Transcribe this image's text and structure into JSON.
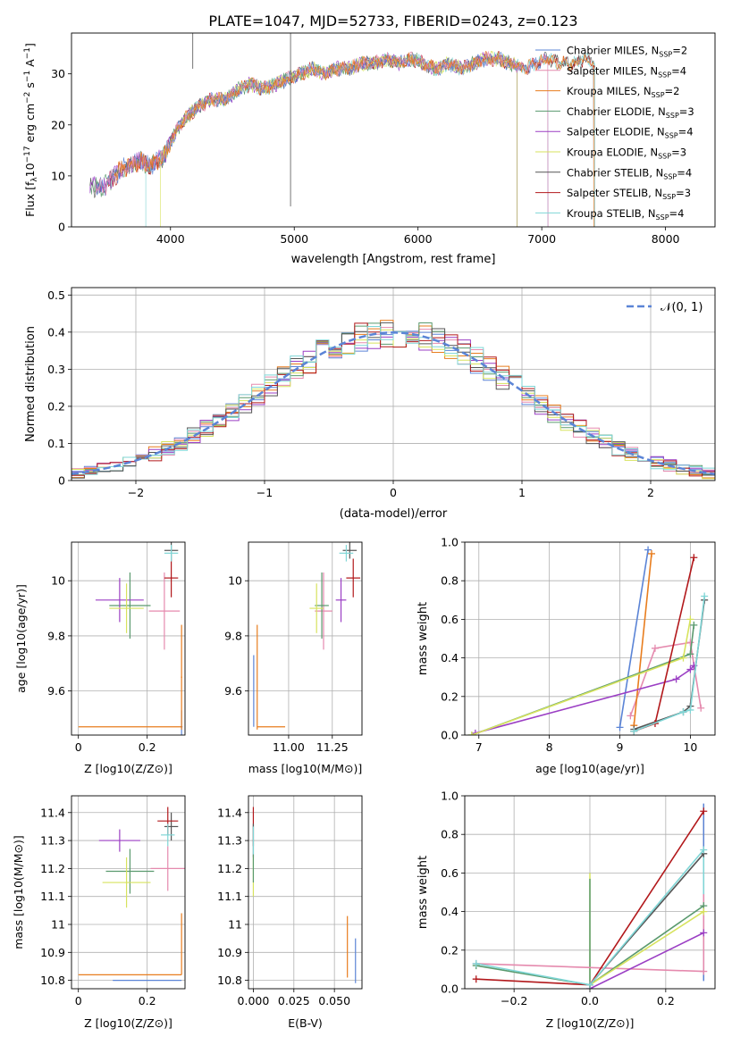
{
  "figure_title": "PLATE=1047, MJD=52733, FIBERID=0243, z=0.123",
  "colors": {
    "Chabrier MILES": "#5b84d6",
    "Salpeter MILES": "#e58aae",
    "Kroupa MILES": "#e87d1e",
    "Chabrier ELODIE": "#5a9a6e",
    "Salpeter ELODIE": "#9b3fc4",
    "Kroupa ELODIE": "#d7e35e",
    "Chabrier STELIB": "#555555",
    "Salpeter STELIB": "#b2181b",
    "Kroupa STELIB": "#7fd6d6"
  },
  "chart_data": [
    {
      "id": "spectrum",
      "type": "line",
      "title": "PLATE=1047, MJD=52733, FIBERID=0243, z=0.123",
      "xlabel": "wavelength [Angstrom, rest frame]",
      "ylabel": "Flux [f_λ 10^-17 erg cm^-2 s^-1 A^-1]",
      "xlim": [
        3200,
        8400
      ],
      "ylim": [
        0,
        38
      ],
      "xticks": [
        4000,
        5000,
        6000,
        7000,
        8000
      ],
      "yticks": [
        0,
        10,
        20,
        30
      ],
      "legend_position": "top-right",
      "legend": [
        "Chabrier MILES, N_SSP=2",
        "Salpeter MILES, N_SSP=4",
        "Kroupa MILES, N_SSP=2",
        "Chabrier ELODIE, N_SSP=3",
        "Salpeter ELODIE, N_SSP=4",
        "Kroupa ELODIE, N_SSP=3",
        "Chabrier STELIB, N_SSP=4",
        "Salpeter STELIB, N_SSP=3",
        "Kroupa STELIB, N_SSP=4"
      ],
      "envelope": {
        "x": [
          3350,
          3450,
          3550,
          3650,
          3750,
          3850,
          3950,
          4050,
          4150,
          4250,
          4350,
          4450,
          4550,
          4650,
          4750,
          4850,
          4950,
          5050,
          5150,
          5250,
          5350,
          5450,
          5550,
          5650,
          5750,
          5850,
          5950,
          6050,
          6150,
          6250,
          6350,
          6450,
          6550,
          6650,
          6750,
          6850,
          6950,
          7050,
          7150,
          7250,
          7350,
          7430
        ],
        "y": [
          8,
          7.5,
          10,
          12,
          13,
          12,
          14,
          19,
          22,
          24,
          25,
          25,
          27,
          28,
          27,
          28,
          29,
          30,
          31,
          30,
          31,
          31,
          32,
          32,
          33,
          32,
          33,
          32,
          31,
          32,
          31,
          32,
          33,
          33,
          32,
          31,
          32,
          33,
          32,
          32,
          33,
          32
        ]
      },
      "model_ranges": [
        {
          "model": "Chabrier MILES",
          "x": [
            3400,
            7050
          ]
        },
        {
          "model": "Salpeter MILES",
          "x": [
            3400,
            7050
          ]
        },
        {
          "model": "Kroupa MILES",
          "x": [
            3550,
            7420
          ]
        },
        {
          "model": "Chabrier ELODIE",
          "x": [
            3350,
            6800
          ]
        },
        {
          "model": "Salpeter ELODIE",
          "x": [
            3350,
            6800
          ]
        },
        {
          "model": "Kroupa ELODIE",
          "x": [
            3920,
            6800
          ]
        },
        {
          "model": "Chabrier STELIB",
          "x": [
            3350,
            7420
          ]
        },
        {
          "model": "Salpeter STELIB",
          "x": [
            3500,
            7430
          ]
        },
        {
          "model": "Kroupa STELIB",
          "x": [
            3800,
            7430
          ]
        }
      ],
      "spikes": [
        {
          "x": 4180,
          "y": [
            31,
            38
          ]
        },
        {
          "x": 4970,
          "y": [
            4,
            38
          ]
        }
      ]
    },
    {
      "id": "residuals",
      "type": "line",
      "xlabel": "(data-model)/error",
      "ylabel": "Normed distribution",
      "xlim": [
        -2.5,
        2.5
      ],
      "ylim": [
        0,
        0.52
      ],
      "xticks": [
        -2,
        -1,
        0,
        1,
        2
      ],
      "yticks": [
        0.0,
        0.1,
        0.2,
        0.3,
        0.4,
        0.5
      ],
      "grid": true,
      "legend_position": "top-right",
      "legend_label": "N(0,1)",
      "gaussian": {
        "mean": 0,
        "sigma": 1,
        "style": "dashed"
      },
      "hist_bins": {
        "start": -2.5,
        "width": 0.1,
        "count": 50
      }
    },
    {
      "id": "z-age",
      "type": "scatter",
      "xlabel": "Z [log10(Z/Z⊙)]",
      "ylabel": "age [log10(age/yr)]",
      "xlim": [
        -0.02,
        0.31
      ],
      "ylim": [
        9.44,
        10.14
      ],
      "xticks": [
        0.0,
        0.2
      ],
      "yticks": [
        9.6,
        9.8,
        10.0
      ],
      "grid": true,
      "points": [
        {
          "model": "Chabrier MILES",
          "x": 0.3,
          "y": 9.47,
          "xerr": 0.003,
          "yerr": 0.06
        },
        {
          "model": "Salpeter MILES",
          "x": 0.25,
          "y": 9.89,
          "xerr": 0.045,
          "yerr": 0.14
        },
        {
          "model": "Kroupa MILES",
          "x": 0.15,
          "y": 9.47,
          "xerr": 0.15,
          "yerr": 0.0
        },
        {
          "model": "Kroupa MILES",
          "x": 0.3,
          "y": 9.65,
          "xerr": 0.002,
          "yerr": 0.19
        },
        {
          "model": "Chabrier ELODIE",
          "x": 0.15,
          "y": 9.91,
          "xerr": 0.06,
          "yerr": 0.12
        },
        {
          "model": "Salpeter ELODIE",
          "x": 0.12,
          "y": 9.93,
          "xerr": 0.07,
          "yerr": 0.08
        },
        {
          "model": "Kroupa ELODIE",
          "x": 0.14,
          "y": 9.9,
          "xerr": 0.05,
          "yerr": 0.09
        },
        {
          "model": "Chabrier STELIB",
          "x": 0.27,
          "y": 10.11,
          "xerr": 0.02,
          "yerr": 0.03
        },
        {
          "model": "Salpeter STELIB",
          "x": 0.27,
          "y": 10.01,
          "xerr": 0.02,
          "yerr": 0.07
        },
        {
          "model": "Kroupa STELIB",
          "x": 0.27,
          "y": 10.1,
          "xerr": 0.02,
          "yerr": 0.03
        }
      ]
    },
    {
      "id": "mass-age",
      "type": "scatter",
      "xlabel": "mass [log10(M/M⊙)]",
      "ylabel": "",
      "xlim": [
        10.77,
        11.42
      ],
      "ylim": [
        9.44,
        10.14
      ],
      "xticks": [
        11.0,
        11.25
      ],
      "tick_labels": [
        "11.00",
        "11.25"
      ],
      "yticks": [
        9.6,
        9.8,
        10.0
      ],
      "grid": true,
      "points": [
        {
          "model": "Chabrier MILES",
          "x": 10.8,
          "y": 9.6,
          "xerr": 0.0,
          "yerr": 0.13
        },
        {
          "model": "Kroupa MILES",
          "x": 10.82,
          "y": 9.65,
          "xerr": 0.0,
          "yerr": 0.19
        },
        {
          "model": "Kroupa MILES",
          "x": 10.9,
          "y": 9.47,
          "xerr": 0.08,
          "yerr": 0.0
        },
        {
          "model": "Salpeter MILES",
          "x": 11.2,
          "y": 9.89,
          "xerr": 0.05,
          "yerr": 0.14
        },
        {
          "model": "Chabrier ELODIE",
          "x": 11.19,
          "y": 9.91,
          "xerr": 0.04,
          "yerr": 0.12
        },
        {
          "model": "Kroupa ELODIE",
          "x": 11.16,
          "y": 9.9,
          "xerr": 0.04,
          "yerr": 0.09
        },
        {
          "model": "Salpeter ELODIE",
          "x": 11.3,
          "y": 9.93,
          "xerr": 0.03,
          "yerr": 0.08
        },
        {
          "model": "Chabrier STELIB",
          "x": 11.35,
          "y": 10.11,
          "xerr": 0.04,
          "yerr": 0.03
        },
        {
          "model": "Salpeter STELIB",
          "x": 11.37,
          "y": 10.01,
          "xerr": 0.04,
          "yerr": 0.07
        },
        {
          "model": "Kroupa STELIB",
          "x": 11.33,
          "y": 10.1,
          "xerr": 0.04,
          "yerr": 0.03
        }
      ]
    },
    {
      "id": "age-weight",
      "type": "line",
      "xlabel": "age [log10(age/yr)]",
      "ylabel": "mass weight",
      "xlim": [
        6.8,
        10.35
      ],
      "ylim": [
        0,
        1.0
      ],
      "xticks": [
        7,
        8,
        9,
        10
      ],
      "yticks": [
        0.0,
        0.2,
        0.4,
        0.6,
        0.8,
        1.0
      ],
      "grid": true,
      "series": [
        {
          "model": "Chabrier MILES",
          "x": [
            9.0,
            9.4
          ],
          "y": [
            0.04,
            0.96
          ]
        },
        {
          "model": "Salpeter MILES",
          "x": [
            9.15,
            9.5,
            10.0,
            10.15
          ],
          "y": [
            0.1,
            0.45,
            0.48,
            0.14
          ]
        },
        {
          "model": "Kroupa MILES",
          "x": [
            9.2,
            9.45
          ],
          "y": [
            0.05,
            0.94
          ]
        },
        {
          "model": "Chabrier ELODIE",
          "x": [
            6.9,
            10.0,
            10.05
          ],
          "y": [
            0.0,
            0.42,
            0.57
          ]
        },
        {
          "model": "Salpeter ELODIE",
          "x": [
            6.95,
            9.8,
            10.0,
            10.05
          ],
          "y": [
            0.01,
            0.29,
            0.34,
            0.36
          ]
        },
        {
          "model": "Kroupa ELODIE",
          "x": [
            6.9,
            9.9,
            10.0
          ],
          "y": [
            0.0,
            0.4,
            0.6
          ]
        },
        {
          "model": "Chabrier STELIB",
          "x": [
            9.2,
            9.9,
            10.0,
            10.2
          ],
          "y": [
            0.03,
            0.12,
            0.15,
            0.7
          ]
        },
        {
          "model": "Salpeter STELIB",
          "x": [
            9.2,
            9.5,
            10.05
          ],
          "y": [
            0.02,
            0.06,
            0.92
          ]
        },
        {
          "model": "Kroupa STELIB",
          "x": [
            9.2,
            9.9,
            10.0,
            10.2
          ],
          "y": [
            0.02,
            0.12,
            0.13,
            0.72
          ]
        }
      ]
    },
    {
      "id": "z-mass",
      "type": "scatter",
      "xlabel": "Z [log10(Z/Z⊙)]",
      "ylabel": "mass [log10(M/M⊙)]",
      "xlim": [
        -0.02,
        0.31
      ],
      "ylim": [
        10.77,
        11.46
      ],
      "xticks": [
        0.0,
        0.2
      ],
      "yticks": [
        10.8,
        10.9,
        11.0,
        11.1,
        11.2,
        11.3,
        11.4
      ],
      "grid": true,
      "points": [
        {
          "model": "Chabrier MILES",
          "x": 0.2,
          "y": 10.8,
          "xerr": 0.1,
          "yerr": 0.0
        },
        {
          "model": "Kroupa MILES",
          "x": 0.15,
          "y": 10.82,
          "xerr": 0.15,
          "yerr": 0.0
        },
        {
          "model": "Kroupa MILES",
          "x": 0.3,
          "y": 10.93,
          "xerr": 0.0,
          "yerr": 0.11
        },
        {
          "model": "Salpeter MILES",
          "x": 0.26,
          "y": 11.2,
          "xerr": 0.05,
          "yerr": 0.08
        },
        {
          "model": "Chabrier ELODIE",
          "x": 0.15,
          "y": 11.19,
          "xerr": 0.07,
          "yerr": 0.08
        },
        {
          "model": "Kroupa ELODIE",
          "x": 0.14,
          "y": 11.15,
          "xerr": 0.07,
          "yerr": 0.09
        },
        {
          "model": "Salpeter ELODIE",
          "x": 0.12,
          "y": 11.3,
          "xerr": 0.06,
          "yerr": 0.04
        },
        {
          "model": "Chabrier STELIB",
          "x": 0.27,
          "y": 11.35,
          "xerr": 0.02,
          "yerr": 0.05
        },
        {
          "model": "Salpeter STELIB",
          "x": 0.26,
          "y": 11.37,
          "xerr": 0.03,
          "yerr": 0.05
        },
        {
          "model": "Kroupa STELIB",
          "x": 0.26,
          "y": 11.32,
          "xerr": 0.02,
          "yerr": 0.04
        }
      ]
    },
    {
      "id": "ebv-mass",
      "type": "scatter",
      "xlabel": "E(B-V)",
      "ylabel": "",
      "xlim": [
        -0.003,
        0.067
      ],
      "ylim": [
        10.77,
        11.46
      ],
      "xticks": [
        0.0,
        0.025,
        0.05
      ],
      "tick_labels": [
        "0.000",
        "0.025",
        "0.050"
      ],
      "yticks": [
        10.8,
        10.9,
        11.0,
        11.1,
        11.2,
        11.3,
        11.4
      ],
      "grid": true,
      "points": [
        {
          "model": "Chabrier MILES",
          "x": 0.063,
          "y": 10.87,
          "xerr": 0.0,
          "yerr": 0.08
        },
        {
          "model": "Kroupa MILES",
          "x": 0.058,
          "y": 10.92,
          "xerr": 0.0,
          "yerr": 0.11
        },
        {
          "model": "Salpeter STELIB",
          "x": 0.0,
          "y": 11.35,
          "xerr": 0.0,
          "yerr": 0.07
        },
        {
          "model": "Chabrier STELIB",
          "x": 0.0,
          "y": 11.3,
          "xerr": 0.0,
          "yerr": 0.06
        },
        {
          "model": "Kroupa STELIB",
          "x": 0.0,
          "y": 11.3,
          "xerr": 0.0,
          "yerr": 0.05
        },
        {
          "model": "Kroupa ELODIE",
          "x": 0.0,
          "y": 11.17,
          "xerr": 0.0,
          "yerr": 0.07
        },
        {
          "model": "Chabrier ELODIE",
          "x": 0.0,
          "y": 11.2,
          "xerr": 0.0,
          "yerr": 0.05
        }
      ]
    },
    {
      "id": "z-weight",
      "type": "line",
      "xlabel": "Z [log10(Z/Z⊙)]",
      "ylabel": "mass weight",
      "xlim": [
        -0.33,
        0.33
      ],
      "ylim": [
        0,
        1.0
      ],
      "xticks": [
        -0.2,
        0.0,
        0.2
      ],
      "yticks": [
        0.0,
        0.2,
        0.4,
        0.6,
        0.8,
        1.0
      ],
      "grid": true,
      "series": [
        {
          "model": "Salpeter MILES",
          "x": [
            -0.3,
            0.3
          ],
          "y": [
            0.13,
            0.09
          ]
        },
        {
          "model": "Chabrier ELODIE",
          "x": [
            -0.3,
            0.0,
            0.3
          ],
          "y": [
            0.12,
            0.02,
            0.43
          ]
        },
        {
          "model": "Salpeter ELODIE",
          "x": [
            0.0,
            0.3
          ],
          "y": [
            0.0,
            0.29
          ]
        },
        {
          "model": "Kroupa ELODIE",
          "x": [
            0.0,
            0.3
          ],
          "y": [
            0.02,
            0.4
          ]
        },
        {
          "model": "Chabrier STELIB",
          "x": [
            0.0,
            0.3
          ],
          "y": [
            0.02,
            0.7
          ]
        },
        {
          "model": "Salpeter STELIB",
          "x": [
            -0.3,
            0.0,
            0.3
          ],
          "y": [
            0.05,
            0.02,
            0.92
          ]
        },
        {
          "model": "Kroupa STELIB",
          "x": [
            -0.3,
            0.0,
            0.3
          ],
          "y": [
            0.13,
            0.02,
            0.72
          ]
        }
      ],
      "vertical_stacks": [
        {
          "model": "Kroupa ELODIE",
          "x": 0.0,
          "y": [
            0.0,
            0.6
          ]
        },
        {
          "model": "Chabrier ELODIE",
          "x": 0.0,
          "y": [
            0.0,
            0.57
          ]
        },
        {
          "model": "Kroupa MILES",
          "x": 0.3,
          "y": [
            0.05,
            0.95
          ]
        },
        {
          "model": "Chabrier MILES",
          "x": 0.3,
          "y": [
            0.04,
            0.96
          ]
        },
        {
          "model": "Kroupa STELIB",
          "x": 0.3,
          "y": [
            0.1,
            0.72
          ]
        },
        {
          "model": "Salpeter MILES",
          "x": 0.3,
          "y": [
            0.1,
            0.49
          ]
        }
      ]
    }
  ],
  "axis_text": {
    "spectrum_ylabel": "Flux [f",
    "spectrum_ylabel_tail": "10",
    "spectrum_ylabel_exp": "−17",
    "spectrum_ylabel_units": " erg cm",
    "spectrum_ylabel_exp2": "−2",
    "spectrum_ylabel_s": " s",
    "spectrum_ylabel_exp3": "−1",
    "spectrum_ylabel_A": " A",
    "spectrum_ylabel_exp4": "−1",
    "spectrum_ylabel_end": "]",
    "legend_nssp": "N",
    "legend_sub": "SSP",
    "gauss_label": "𝒩(0, 1)"
  }
}
